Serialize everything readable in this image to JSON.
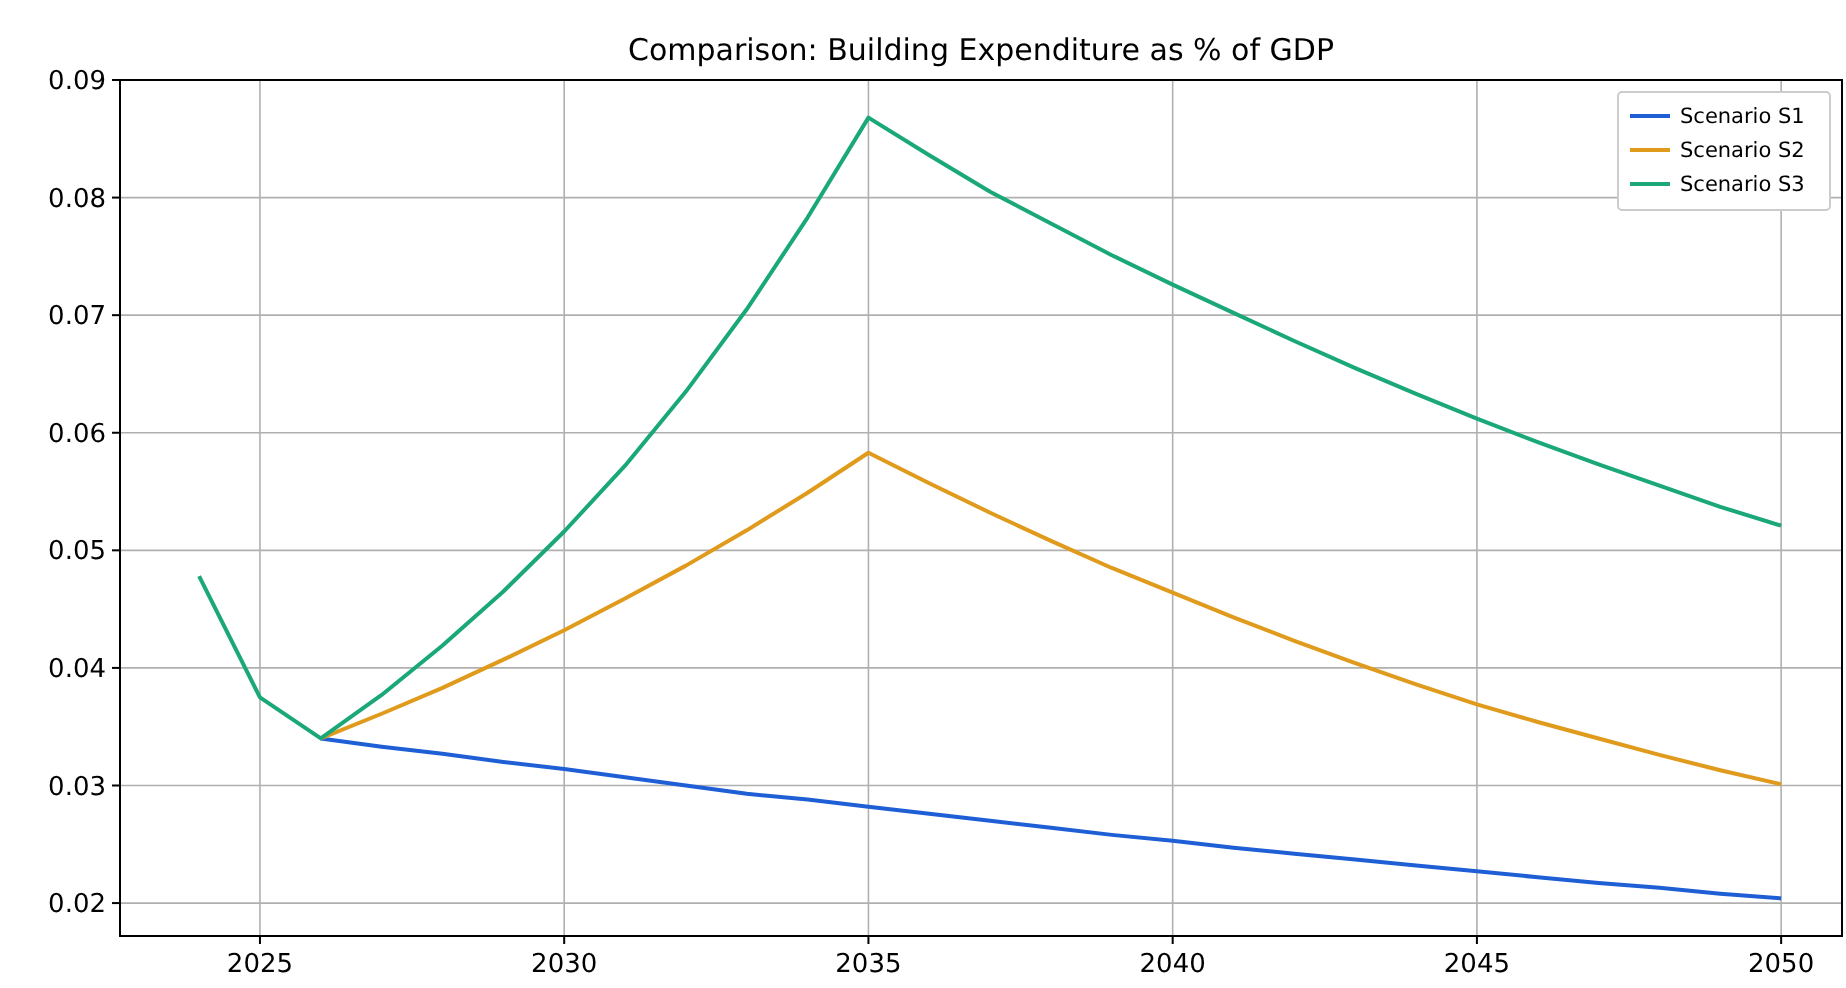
{
  "chart_data": {
    "type": "line",
    "title": "Comparison: Building Expenditure as % of GDP",
    "x": [
      2024,
      2025,
      2026,
      2027,
      2028,
      2029,
      2030,
      2031,
      2032,
      2033,
      2034,
      2035,
      2036,
      2037,
      2038,
      2039,
      2040,
      2041,
      2042,
      2043,
      2044,
      2045,
      2046,
      2047,
      2048,
      2049,
      2050
    ],
    "series": [
      {
        "name": "Scenario S1",
        "color": "#1f5fd6",
        "values": [
          null,
          null,
          0.034,
          0.0333,
          0.0327,
          0.032,
          0.0314,
          0.0307,
          0.03,
          0.0293,
          0.0288,
          0.0282,
          0.0276,
          0.027,
          0.0264,
          0.0258,
          0.0253,
          0.0247,
          0.0242,
          0.0237,
          0.0232,
          0.0227,
          0.0222,
          0.0217,
          0.0213,
          0.0208,
          0.0204
        ]
      },
      {
        "name": "Scenario S2",
        "color": "#e09a1c",
        "values": [
          null,
          null,
          0.034,
          0.0361,
          0.0383,
          0.0407,
          0.0432,
          0.0459,
          0.0487,
          0.0517,
          0.0549,
          0.0583,
          0.0557,
          0.0532,
          0.0508,
          0.0485,
          0.0464,
          0.0443,
          0.0423,
          0.0404,
          0.0386,
          0.0369,
          0.0354,
          0.034,
          0.0326,
          0.0313,
          0.0301
        ]
      },
      {
        "name": "Scenario S3",
        "color": "#1aa87a",
        "values": [
          0.0478,
          0.0375,
          0.034,
          0.0377,
          0.0419,
          0.0465,
          0.0516,
          0.0572,
          0.0635,
          0.0705,
          0.0783,
          0.0868,
          0.0836,
          0.0805,
          0.0778,
          0.0751,
          0.0726,
          0.0702,
          0.0678,
          0.0655,
          0.0633,
          0.0612,
          0.0592,
          0.0573,
          0.0555,
          0.0537,
          0.0521
        ]
      }
    ],
    "xlim": [
      2022.7,
      2051.0
    ],
    "xticks": [
      2025,
      2030,
      2035,
      2040,
      2045,
      2050
    ],
    "ylim": [
      0.0172,
      0.09
    ],
    "yticks": [
      0.02,
      0.03,
      0.04,
      0.05,
      0.06,
      0.07,
      0.08,
      0.09
    ],
    "grid": true,
    "legend": "top right",
    "marker": "none",
    "line_style": "solid"
  }
}
